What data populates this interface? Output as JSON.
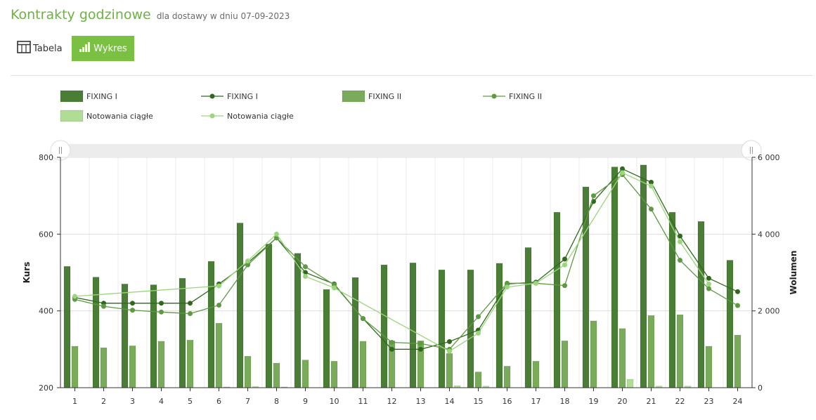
{
  "header": {
    "title": "Kontrakty godzinowe",
    "subtitle": "dla dostawy w dniu 07-09-2023"
  },
  "tabs": [
    {
      "label": "Tabela",
      "icon": "table-icon",
      "active": false
    },
    {
      "label": "Wykres",
      "icon": "bar-chart-icon",
      "active": true
    }
  ],
  "colors": {
    "fixing1": "#4a7d35",
    "fixing1_line": "#2f6a1c",
    "fixing2": "#7aab5a",
    "fixing2_line": "#5e9a41",
    "ciagle": "#b0dc96",
    "ciagle_line": "#9cd57c",
    "accent": "#7ac143"
  },
  "chart_data": {
    "type": "bar",
    "categories": [
      "1",
      "2",
      "3",
      "4",
      "5",
      "6",
      "7",
      "8",
      "9",
      "10",
      "11",
      "12",
      "13",
      "14",
      "15",
      "16",
      "17",
      "18",
      "19",
      "20",
      "21",
      "22",
      "23",
      "24"
    ],
    "ylabel": "Kurs",
    "y2label": "Wolumen",
    "ylim": [
      200,
      800
    ],
    "y2lim": [
      0,
      6000
    ],
    "yticks": [
      "200",
      "400",
      "600",
      "800"
    ],
    "y2ticks": [
      "0",
      "2 000",
      "4 000",
      "6 000"
    ],
    "legend": [
      "FIXING I",
      "FIXING I",
      "FIXING II",
      "FIXING II",
      "Notowania ciągłe",
      "Notowania ciągłe"
    ],
    "legend_position": "top-left",
    "grid": true,
    "series": [
      {
        "name": "FIXING I",
        "kind": "bar",
        "axis": "volume",
        "values": [
          3160,
          2880,
          2700,
          2680,
          2850,
          3290,
          4290,
          3740,
          3500,
          2560,
          2870,
          3200,
          3250,
          3070,
          3070,
          3240,
          3650,
          4570,
          5230,
          5750,
          5800,
          4570,
          4330,
          3320
        ]
      },
      {
        "name": "FIXING II",
        "kind": "bar",
        "axis": "volume",
        "values": [
          1080,
          1040,
          1090,
          1210,
          1240,
          1680,
          820,
          640,
          720,
          690,
          1210,
          1220,
          1220,
          890,
          410,
          560,
          690,
          1220,
          1740,
          1540,
          1880,
          1900,
          1080,
          1370
        ]
      },
      {
        "name": "Notowania ciągłe",
        "kind": "bar",
        "axis": "volume",
        "values": [
          0,
          0,
          0,
          0,
          0,
          20,
          30,
          20,
          0,
          0,
          0,
          0,
          0,
          50,
          40,
          0,
          0,
          0,
          0,
          220,
          40,
          40,
          0,
          0
        ]
      },
      {
        "name": "FIXING I",
        "kind": "line",
        "axis": "price",
        "values": [
          435,
          420,
          420,
          420,
          420,
          470,
          525,
          590,
          500,
          470,
          380,
          300,
          300,
          320,
          350,
          470,
          475,
          535,
          685,
          770,
          735,
          595,
          485,
          450
        ]
      },
      {
        "name": "FIXING II",
        "kind": "line",
        "axis": "price",
        "values": [
          430,
          412,
          402,
          397,
          393,
          415,
          520,
          590,
          515,
          468,
          380,
          318,
          315,
          300,
          385,
          472,
          472,
          466,
          700,
          755,
          665,
          532,
          458,
          414
        ]
      },
      {
        "name": "Notowania ciągłe",
        "kind": "line",
        "axis": "price",
        "values": [
          438,
          null,
          null,
          null,
          null,
          465,
          530,
          600,
          490,
          460,
          null,
          null,
          null,
          295,
          342,
          462,
          472,
          520,
          null,
          760,
          725,
          580,
          470,
          null
        ]
      }
    ]
  }
}
